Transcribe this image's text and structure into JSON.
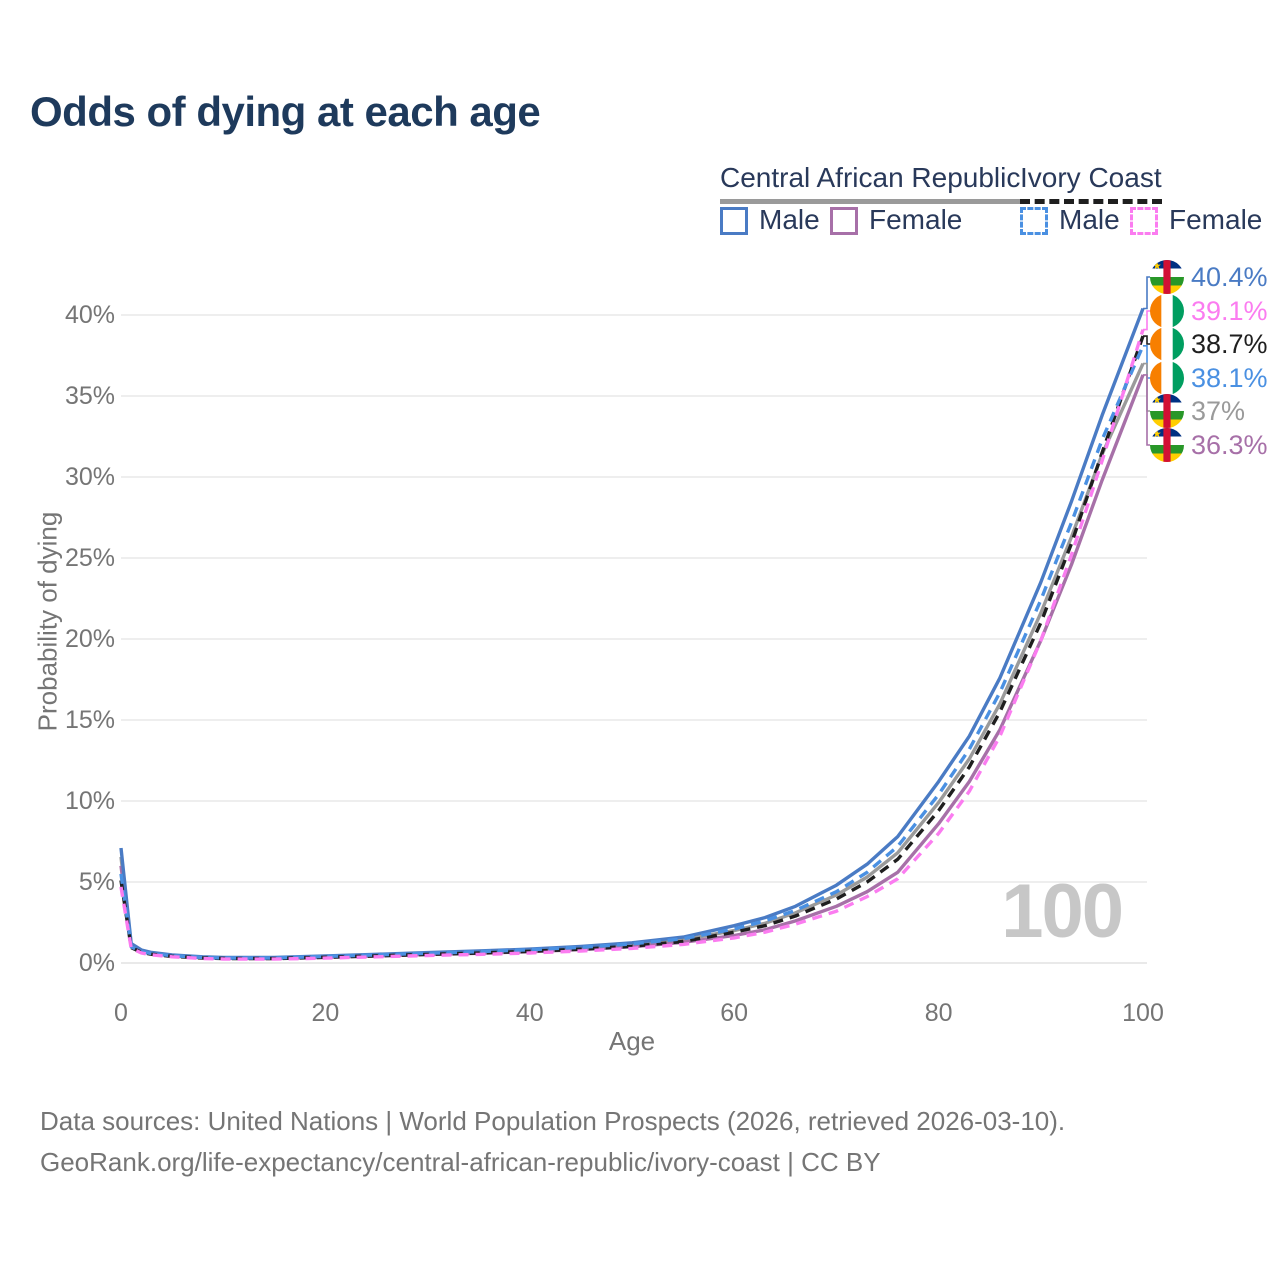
{
  "title": "Odds of dying at each age",
  "watermark": "100",
  "legend": {
    "groups": [
      {
        "label": "Central African Republic",
        "underline_style": "solid",
        "underline_color": "#9a9a9a",
        "items": [
          {
            "label": "Male",
            "color": "#4a7bc4",
            "dashed": false
          },
          {
            "label": "Female",
            "color": "#a770a8",
            "dashed": false
          }
        ]
      },
      {
        "label": "Ivory Coast",
        "underline_style": "dashed",
        "underline_color": "#1f1f1f",
        "items": [
          {
            "label": "Male",
            "color": "#4a90e2",
            "dashed": true
          },
          {
            "label": "Female",
            "color": "#fb7cf0",
            "dashed": true
          }
        ]
      }
    ]
  },
  "end_labels": [
    {
      "series": "car_male",
      "value": "40.4%",
      "color": "#4a7bc4",
      "flag": "car"
    },
    {
      "series": "ic_female",
      "value": "39.1%",
      "color": "#fb7cf0",
      "flag": "civ"
    },
    {
      "series": "ic_all",
      "value": "38.7%",
      "color": "#1f1f1f",
      "flag": "civ"
    },
    {
      "series": "ic_male",
      "value": "38.1%",
      "color": "#4a90e2",
      "flag": "civ"
    },
    {
      "series": "car_all",
      "value": "37%",
      "color": "#9a9a9a",
      "flag": "car"
    },
    {
      "series": "car_female",
      "value": "36.3%",
      "color": "#a770a8",
      "flag": "car"
    }
  ],
  "footer": {
    "line1": "Data sources: United Nations | World Population Prospects (2026, retrieved 2026-03-10).",
    "line2": "GeoRank.org/life-expectancy/central-african-republic/ivory-coast | CC BY"
  },
  "chart_data": {
    "type": "line",
    "title": "Odds of dying at each age",
    "xlabel": "Age",
    "ylabel": "Probability of dying",
    "xlim": [
      0,
      100
    ],
    "ylim": [
      0,
      42
    ],
    "grid": "horizontal",
    "legend_position": "top-right",
    "x_ticks": [
      0,
      20,
      40,
      60,
      80,
      100
    ],
    "y_tick_values": [
      0,
      5,
      10,
      15,
      20,
      25,
      30,
      35,
      40
    ],
    "y_ticks": [
      "0%",
      "5%",
      "10%",
      "15%",
      "20%",
      "25%",
      "30%",
      "35%",
      "40%"
    ],
    "ages": [
      0,
      1,
      2,
      3,
      5,
      8,
      10,
      15,
      20,
      25,
      30,
      35,
      40,
      45,
      50,
      55,
      60,
      63,
      66,
      70,
      73,
      76,
      80,
      83,
      86,
      90,
      93,
      96,
      100
    ],
    "unit": "percent",
    "series": [
      {
        "id": "car_all",
        "name": "Central African Republic — Both sexes",
        "color": "#9a9a9a",
        "dash": false,
        "end_value": 37.0,
        "values": [
          6.55,
          1.12,
          0.76,
          0.61,
          0.47,
          0.35,
          0.31,
          0.31,
          0.39,
          0.49,
          0.58,
          0.67,
          0.78,
          0.92,
          1.12,
          1.43,
          2.0,
          2.45,
          3.1,
          4.2,
          5.3,
          6.8,
          9.9,
          12.6,
          16.0,
          21.6,
          26.3,
          31.4,
          37.0
        ]
      },
      {
        "id": "car_female",
        "name": "Central African Republic — Female",
        "color": "#a770a8",
        "dash": false,
        "end_value": 36.3,
        "values": [
          6.0,
          1.05,
          0.72,
          0.58,
          0.44,
          0.33,
          0.29,
          0.28,
          0.35,
          0.44,
          0.53,
          0.6,
          0.7,
          0.83,
          1.0,
          1.28,
          1.7,
          2.05,
          2.6,
          3.5,
          4.4,
          5.6,
          8.6,
          11.2,
          14.4,
          19.9,
          24.6,
          29.8,
          36.3
        ]
      },
      {
        "id": "car_male",
        "name": "Central African Republic — Male",
        "color": "#4a7bc4",
        "dash": false,
        "end_value": 40.4,
        "values": [
          7.1,
          1.2,
          0.8,
          0.65,
          0.5,
          0.38,
          0.34,
          0.34,
          0.44,
          0.54,
          0.64,
          0.74,
          0.86,
          1.02,
          1.25,
          1.6,
          2.3,
          2.8,
          3.5,
          4.8,
          6.1,
          7.8,
          11.2,
          14.0,
          17.6,
          23.5,
          28.5,
          33.8,
          40.4
        ]
      },
      {
        "id": "ic_all",
        "name": "Ivory Coast — Both sexes",
        "color": "#1f1f1f",
        "dash": true,
        "end_value": 38.7,
        "values": [
          5.1,
          0.95,
          0.66,
          0.54,
          0.41,
          0.31,
          0.28,
          0.27,
          0.35,
          0.44,
          0.53,
          0.61,
          0.72,
          0.85,
          1.04,
          1.33,
          1.9,
          2.3,
          2.9,
          3.95,
          5.0,
          6.4,
          9.4,
          12.1,
          15.5,
          21.0,
          25.9,
          31.5,
          38.7
        ]
      },
      {
        "id": "ic_male",
        "name": "Ivory Coast — Male",
        "color": "#4a90e2",
        "dash": true,
        "end_value": 38.1,
        "values": [
          5.5,
          1.0,
          0.7,
          0.58,
          0.45,
          0.34,
          0.31,
          0.31,
          0.41,
          0.5,
          0.6,
          0.7,
          0.82,
          0.97,
          1.18,
          1.5,
          2.1,
          2.6,
          3.25,
          4.4,
          5.6,
          7.2,
          10.4,
          13.2,
          16.7,
          22.4,
          27.2,
          32.3,
          38.1
        ]
      },
      {
        "id": "ic_female",
        "name": "Ivory Coast — Female",
        "color": "#fb7cf0",
        "dash": true,
        "end_value": 39.1,
        "values": [
          4.7,
          0.9,
          0.62,
          0.5,
          0.38,
          0.28,
          0.25,
          0.24,
          0.3,
          0.38,
          0.46,
          0.53,
          0.62,
          0.74,
          0.9,
          1.15,
          1.55,
          1.9,
          2.4,
          3.2,
          4.1,
          5.2,
          8.0,
          10.6,
          14.0,
          19.9,
          25.2,
          31.0,
          39.1
        ]
      }
    ]
  }
}
